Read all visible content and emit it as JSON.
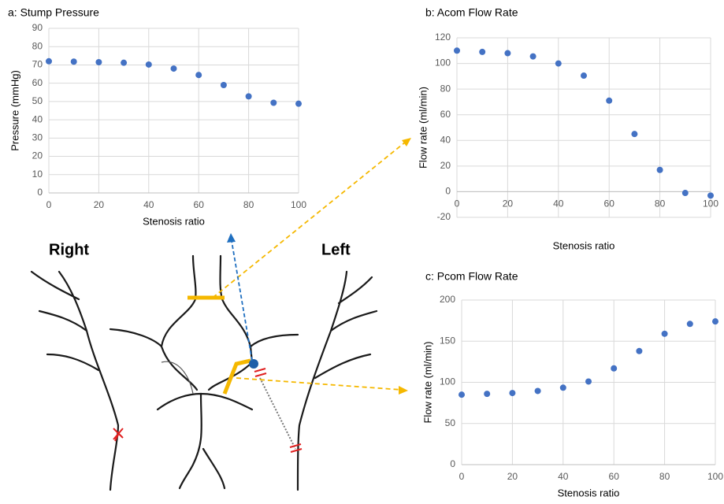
{
  "chart_data": [
    {
      "type": "scatter",
      "title": "a: Stump Pressure",
      "x_label": "Stenosis ratio",
      "y_label": "Pressure (mmHg)",
      "x": [
        0,
        10,
        20,
        30,
        40,
        50,
        60,
        70,
        80,
        90,
        100
      ],
      "values": [
        72,
        71.8,
        71.5,
        71.2,
        70.2,
        68,
        64.5,
        59,
        52.8,
        49.3,
        48.8
      ],
      "color": "#4472c4",
      "xlim": [
        0,
        100
      ],
      "xticks": [
        0,
        20,
        40,
        60,
        80,
        100
      ],
      "ylim": [
        0,
        90
      ],
      "yticks": [
        0,
        10,
        20,
        30,
        40,
        50,
        60,
        70,
        80,
        90
      ],
      "grid": true
    },
    {
      "type": "scatter",
      "title": "b: Acom Flow Rate",
      "x_label": "Stenosis ratio",
      "y_label": "Flow rate (ml/min)",
      "x": [
        0,
        10,
        20,
        30,
        40,
        50,
        60,
        70,
        80,
        90,
        100
      ],
      "values": [
        110,
        109,
        108,
        105.5,
        100,
        90.5,
        71,
        45,
        17,
        -1,
        -3
      ],
      "color": "#4472c4",
      "xlim": [
        0,
        100
      ],
      "xticks": [
        0,
        20,
        40,
        60,
        80,
        100
      ],
      "ylim": [
        -20,
        120
      ],
      "yticks": [
        -20,
        0,
        20,
        40,
        60,
        80,
        100,
        120
      ],
      "grid": true
    },
    {
      "type": "scatter",
      "title": "c: Pcom Flow Rate",
      "x_label": "Stenosis ratio",
      "y_label": "Flow rate (ml/min)",
      "x": [
        0,
        10,
        20,
        30,
        40,
        50,
        60,
        70,
        80,
        90,
        100
      ],
      "values": [
        85,
        86,
        87,
        89.5,
        93.5,
        101,
        117,
        138,
        159,
        171,
        174
      ],
      "color": "#4472c4",
      "xlim": [
        0,
        100
      ],
      "xticks": [
        0,
        20,
        40,
        60,
        80,
        100
      ],
      "ylim": [
        0,
        200
      ],
      "yticks": [
        0,
        50,
        100,
        150,
        200
      ],
      "grid": true
    }
  ],
  "diagram": {
    "labels": [
      "Right",
      "Left"
    ]
  }
}
